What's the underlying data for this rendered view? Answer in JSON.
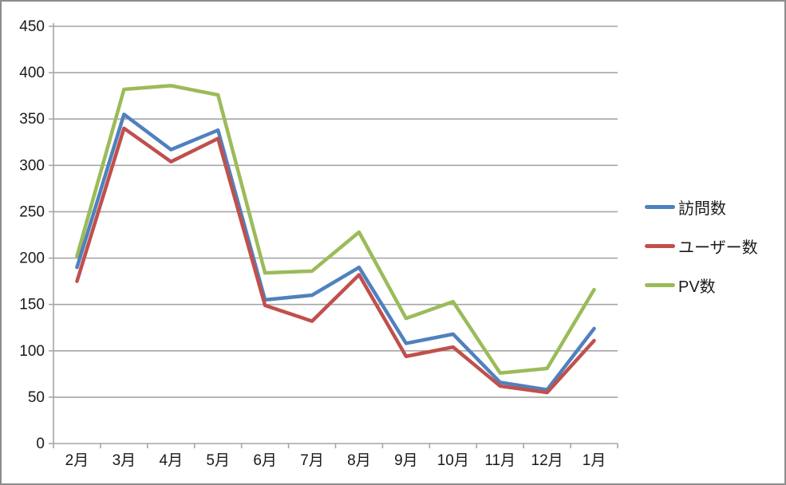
{
  "chart_data": {
    "type": "line",
    "title": "",
    "xlabel": "",
    "ylabel": "",
    "categories": [
      "2月",
      "3月",
      "4月",
      "5月",
      "6月",
      "7月",
      "8月",
      "9月",
      "10月",
      "11月",
      "12月",
      "1月"
    ],
    "series": [
      {
        "name": "訪問数",
        "color": "#4F81BD",
        "values": [
          190,
          355,
          317,
          338,
          155,
          160,
          190,
          108,
          118,
          66,
          58,
          124
        ]
      },
      {
        "name": "ユーザー数",
        "color": "#C0504D",
        "values": [
          175,
          340,
          304,
          329,
          149,
          132,
          182,
          94,
          104,
          62,
          55,
          111
        ]
      },
      {
        "name": "PV数",
        "color": "#9BBB59",
        "values": [
          202,
          382,
          386,
          376,
          184,
          186,
          228,
          135,
          153,
          76,
          81,
          166
        ]
      }
    ],
    "ylim": [
      0,
      450
    ],
    "ytick_step": 50,
    "y_tick_labels": [
      "0",
      "50",
      "100",
      "150",
      "200",
      "250",
      "300",
      "350",
      "400",
      "450"
    ],
    "grid": true,
    "legend_position": "right",
    "colors": {
      "gridline": "#a6a6a6",
      "axis": "#a6a6a6",
      "text": "#1a1a1a",
      "frame_border": "#8c8c8c",
      "background": "#ffffff"
    }
  }
}
